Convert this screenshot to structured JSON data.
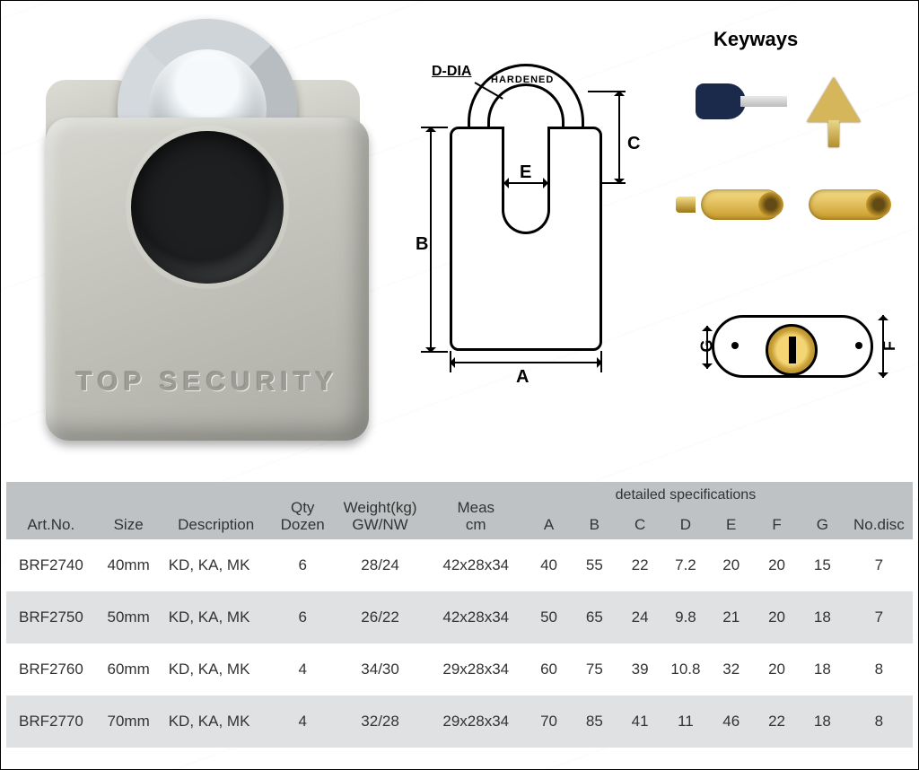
{
  "colors": {
    "header_bg": "#bfc2c4",
    "row_even_bg": "#dfe1e2",
    "row_odd_bg": "#ffffff",
    "text": "#333333",
    "border": "#000000",
    "brass": "#d6b65a",
    "key_dark": "#1b2a4a"
  },
  "photo": {
    "emboss_text": "TOP  SECURITY"
  },
  "diagram": {
    "hardened_label": "HARDENED",
    "d_dia_label": "D-DIA",
    "labels": {
      "A": "A",
      "B": "B",
      "C": "C",
      "E": "E",
      "F": "F",
      "G": "G"
    }
  },
  "keyways": {
    "title": "Keyways"
  },
  "table": {
    "headers": {
      "art": "Art.No.",
      "size": "Size",
      "desc": "Description",
      "qty_top": "Qty",
      "qty_bot": "Dozen",
      "wt_top": "Weight(kg)",
      "wt_bot": "GW/NW",
      "meas_top": "Meas",
      "meas_bot": "cm",
      "group": "detailed specifications",
      "A": "A",
      "B": "B",
      "C": "C",
      "D": "D",
      "E": "E",
      "F": "F",
      "G": "G",
      "disc": "No.disc"
    },
    "rows": [
      {
        "art": "BRF2740",
        "size": "40mm",
        "desc": "KD, KA, MK",
        "qty": "6",
        "wt": "28/24",
        "meas": "42x28x34",
        "A": "40",
        "B": "55",
        "C": "22",
        "D": "7.2",
        "E": "20",
        "F": "20",
        "G": "15",
        "disc": "7"
      },
      {
        "art": "BRF2750",
        "size": "50mm",
        "desc": "KD, KA, MK",
        "qty": "6",
        "wt": "26/22",
        "meas": "42x28x34",
        "A": "50",
        "B": "65",
        "C": "24",
        "D": "9.8",
        "E": "21",
        "F": "20",
        "G": "18",
        "disc": "7"
      },
      {
        "art": "BRF2760",
        "size": "60mm",
        "desc": "KD, KA, MK",
        "qty": "4",
        "wt": "34/30",
        "meas": "29x28x34",
        "A": "60",
        "B": "75",
        "C": "39",
        "D": "10.8",
        "E": "32",
        "F": "20",
        "G": "18",
        "disc": "8"
      },
      {
        "art": "BRF2770",
        "size": "70mm",
        "desc": "KD, KA, MK",
        "qty": "4",
        "wt": "32/28",
        "meas": "29x28x34",
        "A": "70",
        "B": "85",
        "C": "41",
        "D": "11",
        "E": "46",
        "F": "22",
        "G": "18",
        "disc": "8"
      }
    ]
  }
}
